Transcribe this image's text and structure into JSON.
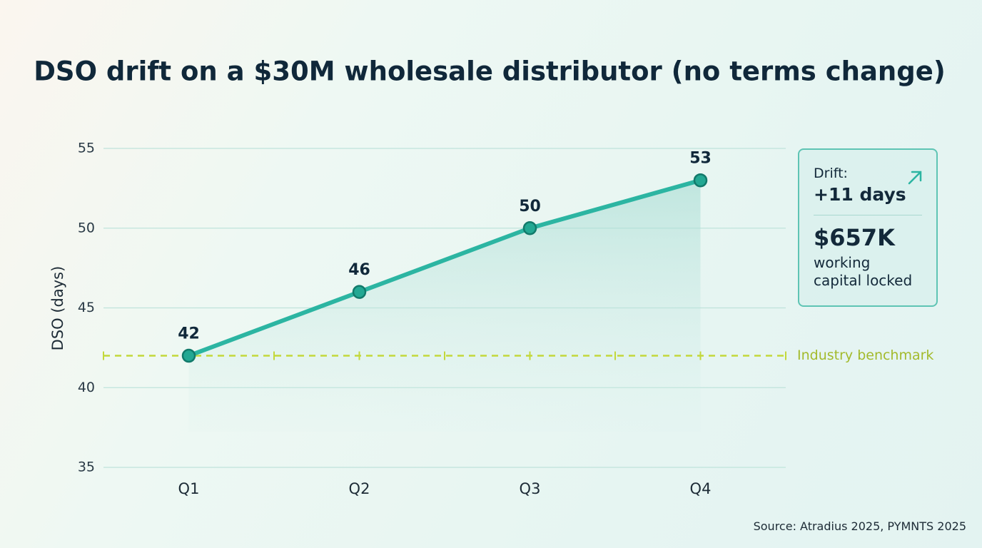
{
  "chart_data": {
    "type": "line",
    "title": "DSO drift on a $30M wholesale distributor (no terms change)",
    "y_label": "DSO (days)",
    "categories": [
      "Q1",
      "Q2",
      "Q3",
      "Q4"
    ],
    "values": [
      42,
      46,
      50,
      53
    ],
    "color": "#2cb5a2",
    "ylim": [
      35,
      55
    ],
    "yticks": [
      35,
      40,
      45,
      50,
      55
    ],
    "grid": true,
    "benchmark": {
      "value": 42,
      "label": "Industry benchmark",
      "color": "#c3d83a"
    }
  },
  "callout": {
    "label": "Drift:",
    "value": "+11 days",
    "amount": "$657K",
    "amount_label": "working capital locked"
  },
  "source": "Source: Atradius 2025, PYMNTS 2025"
}
